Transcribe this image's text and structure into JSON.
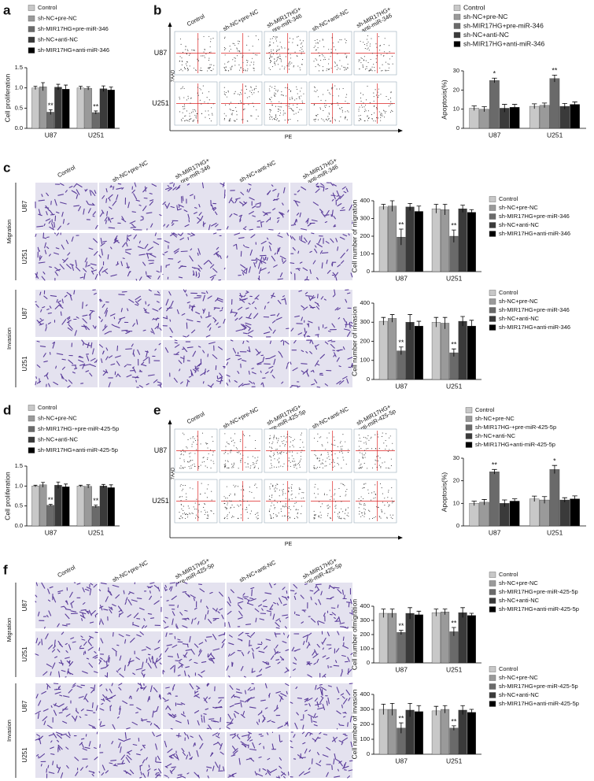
{
  "figure": {
    "panel_labels": [
      "a",
      "b",
      "c",
      "d",
      "e",
      "f"
    ]
  },
  "flow_panels": [
    {
      "columns": [
        [
          "Control"
        ],
        [
          "sh-NC+pre-NC"
        ],
        [
          "sh-MIR17HG+",
          "pre-miR-346"
        ],
        [
          "sh-NC+anti-NC"
        ],
        [
          "sh-MIR17HG+",
          "anti-miR-346"
        ]
      ],
      "rows": [
        "U87",
        "U251"
      ],
      "y_axis": "7AAD",
      "x_axis": "PE"
    },
    {
      "columns": [
        [
          "Control"
        ],
        [
          "sh-NC+pre-NC"
        ],
        [
          "sh-MIR17HG+",
          "pre-miR-425-5p"
        ],
        [
          "sh-NC+anti-NC"
        ],
        [
          "sh-MIR17HG+",
          "anti-miR-425-5p"
        ]
      ],
      "rows": [
        "U87",
        "U251"
      ],
      "y_axis": "7AAD",
      "x_axis": "PE"
    }
  ],
  "image_panels": [
    {
      "columns": [
        [
          "Control"
        ],
        [
          "sh-NC+pre-NC"
        ],
        [
          "sh-MIR17HG+",
          "pre-miR-346"
        ],
        [
          "sh-NC+anti-NC"
        ],
        [
          "sh-MIR17HG+",
          "anti-miR-346"
        ]
      ],
      "groups": [
        {
          "name": "Migration",
          "rows": [
            "U87",
            "U251"
          ]
        },
        {
          "name": "Invasion",
          "rows": [
            "U87",
            "U251"
          ]
        }
      ]
    },
    {
      "columns": [
        [
          "Control"
        ],
        [
          "sh-NC+pre-NC"
        ],
        [
          "sh-MIR17HG+",
          "pre-miR-425-5p"
        ],
        [
          "sh-NC+anti-NC"
        ],
        [
          "sh-MIR17HG+",
          "anti-miR-425-5p"
        ]
      ],
      "groups": [
        {
          "name": "Migration",
          "rows": [
            "U87",
            "U251"
          ]
        },
        {
          "name": "Invasion",
          "rows": [
            "U87",
            "U251"
          ]
        }
      ]
    }
  ],
  "chart_data": [
    {
      "type": "bar",
      "ylabel": "Cell proliferation",
      "categories": [
        "U87",
        "U251"
      ],
      "ylim": [
        0,
        1.5
      ],
      "yticks": [
        {
          "value": 0,
          "label": "0.0"
        },
        0.5,
        {
          "value": 1,
          "label": "1.0"
        },
        1.5
      ],
      "series": [
        {
          "name": "Control",
          "color": "#c8c8c8",
          "values": [
            1.0,
            1.0
          ],
          "errors": [
            0.04,
            0.04
          ]
        },
        {
          "name": "sh-NC+pre-NC",
          "color": "#9a9a9a",
          "values": [
            1.03,
            0.99
          ],
          "errors": [
            0.1,
            0.04
          ]
        },
        {
          "name": "sh-MIR17HG+pre-miR-346",
          "color": "#6a6a6a",
          "values": [
            0.4,
            0.39
          ],
          "errors": [
            0.06,
            0.04
          ],
          "significance": [
            "**",
            "**"
          ]
        },
        {
          "name": "sh-NC+anti-NC",
          "color": "#3a3a3a",
          "values": [
            1.02,
            0.98
          ],
          "errors": [
            0.07,
            0.07
          ]
        },
        {
          "name": "sh-MIR17HG+anti-miR-346",
          "color": "#000000",
          "values": [
            0.97,
            0.95
          ],
          "errors": [
            0.1,
            0.07
          ]
        }
      ]
    },
    {
      "type": "bar",
      "ylabel": "Apoptosis(%)",
      "categories": [
        "U87",
        "U251"
      ],
      "ylim": [
        0,
        30
      ],
      "yticks": [
        0,
        10,
        20,
        30
      ],
      "series": [
        {
          "name": "Control",
          "color": "#c8c8c8",
          "values": [
            10.5,
            11.5
          ],
          "errors": [
            1.2,
            1.3
          ]
        },
        {
          "name": "sh-NC+pre-NC",
          "color": "#9a9a9a",
          "values": [
            10,
            12
          ],
          "errors": [
            1.3,
            1.2
          ]
        },
        {
          "name": "sh-MIR17HG+pre-miR-346",
          "color": "#6a6a6a",
          "values": [
            25,
            26
          ],
          "errors": [
            1.2,
            1.8
          ],
          "significance": [
            "*",
            "**"
          ]
        },
        {
          "name": "sh-NC+anti-NC",
          "color": "#3a3a3a",
          "values": [
            10.5,
            11.5
          ],
          "errors": [
            2,
            1.5
          ]
        },
        {
          "name": "sh-MIR17HG+anti-miR-346",
          "color": "#000000",
          "values": [
            11,
            12.5
          ],
          "errors": [
            1.5,
            1.3
          ]
        }
      ]
    },
    {
      "type": "bar",
      "ylabel": "Cell number of migration",
      "categories": [
        "U87",
        "U251"
      ],
      "ylim": [
        0,
        400
      ],
      "yticks": [
        0,
        100,
        200,
        300,
        400
      ],
      "series": [
        {
          "name": "Control",
          "color": "#c8c8c8",
          "values": [
            365,
            355
          ],
          "errors": [
            15,
            25
          ]
        },
        {
          "name": "sh-NC+pre-NC",
          "color": "#9a9a9a",
          "values": [
            370,
            350
          ],
          "errors": [
            30,
            30
          ]
        },
        {
          "name": "sh-MIR17HG+pre-miR-346",
          "color": "#6a6a6a",
          "values": [
            195,
            200
          ],
          "errors": [
            45,
            35
          ],
          "significance": [
            "**",
            "**"
          ]
        },
        {
          "name": "sh-NC+anti-NC",
          "color": "#3a3a3a",
          "values": [
            365,
            355
          ],
          "errors": [
            20,
            20
          ]
        },
        {
          "name": "sh-MIR17HG+anti-miR-346",
          "color": "#000000",
          "values": [
            340,
            335
          ],
          "errors": [
            30,
            15
          ]
        }
      ]
    },
    {
      "type": "bar",
      "ylabel": "Cell number of invasion",
      "categories": [
        "U87",
        "U251"
      ],
      "ylim": [
        0,
        400
      ],
      "yticks": [
        0,
        100,
        200,
        300,
        400
      ],
      "series": [
        {
          "name": "Control",
          "color": "#c8c8c8",
          "values": [
            305,
            300
          ],
          "errors": [
            20,
            25
          ]
        },
        {
          "name": "sh-NC+pre-NC",
          "color": "#9a9a9a",
          "values": [
            320,
            295
          ],
          "errors": [
            20,
            30
          ]
        },
        {
          "name": "sh-MIR17HG+pre-miR-346",
          "color": "#6a6a6a",
          "values": [
            150,
            140
          ],
          "errors": [
            20,
            20
          ],
          "significance": [
            "**",
            "**"
          ]
        },
        {
          "name": "sh-NC+anti-NC",
          "color": "#3a3a3a",
          "values": [
            300,
            305
          ],
          "errors": [
            40,
            25
          ]
        },
        {
          "name": "sh-MIR17HG+anti-miR-346",
          "color": "#000000",
          "values": [
            280,
            280
          ],
          "errors": [
            25,
            30
          ]
        }
      ]
    },
    {
      "type": "bar",
      "ylabel": "Cell proliferation",
      "categories": [
        "U87",
        "U251"
      ],
      "ylim": [
        0,
        1.5
      ],
      "yticks": [
        {
          "value": 0,
          "label": "0.0"
        },
        0.5,
        {
          "value": 1,
          "label": "1.0"
        },
        1.5
      ],
      "series": [
        {
          "name": "Control",
          "color": "#c8c8c8",
          "values": [
            1.0,
            1.0
          ],
          "errors": [
            0.02,
            0.02
          ]
        },
        {
          "name": "sh-NC+pre-NC",
          "color": "#9a9a9a",
          "values": [
            1.03,
            0.99
          ],
          "errors": [
            0.06,
            0.04
          ]
        },
        {
          "name": "sh-MIR17HG-+pre-miR-425-5p",
          "color": "#6a6a6a",
          "values": [
            0.52,
            0.49
          ],
          "errors": [
            0.02,
            0.03
          ],
          "significance": [
            "**",
            "**"
          ]
        },
        {
          "name": "sh-NC+anti-NC",
          "color": "#3a3a3a",
          "values": [
            1.02,
            1.0
          ],
          "errors": [
            0.08,
            0.04
          ]
        },
        {
          "name": "sh-MIR17HG+anti-miR-425-5p",
          "color": "#000000",
          "values": [
            0.98,
            0.96
          ],
          "errors": [
            0.07,
            0.07
          ]
        }
      ]
    },
    {
      "type": "bar",
      "ylabel": "Apoptosis(%)",
      "categories": [
        "U87",
        "U251"
      ],
      "ylim": [
        0,
        30
      ],
      "yticks": [
        0,
        10,
        20,
        30
      ],
      "series": [
        {
          "name": "Control",
          "color": "#c8c8c8",
          "values": [
            10,
            12
          ],
          "errors": [
            1,
            1.2
          ]
        },
        {
          "name": "sh-NC+pre-NC",
          "color": "#9a9a9a",
          "values": [
            10.5,
            11.5
          ],
          "errors": [
            1.2,
            1.5
          ]
        },
        {
          "name": "sh-MIR17HG-+pre-miR-425-5p",
          "color": "#6a6a6a",
          "values": [
            24,
            25
          ],
          "errors": [
            1,
            1.8
          ],
          "significance": [
            "**",
            "*"
          ]
        },
        {
          "name": "sh-NC+anti-NC",
          "color": "#3a3a3a",
          "values": [
            10,
            11.5
          ],
          "errors": [
            1.5,
            1
          ]
        },
        {
          "name": "sh-MIR17HG+anti-miR-425-5p",
          "color": "#000000",
          "values": [
            11,
            12
          ],
          "errors": [
            1,
            1.3
          ]
        }
      ]
    },
    {
      "type": "bar",
      "ylabel": "Cell number ofmigration",
      "categories": [
        "U87",
        "U251"
      ],
      "ylim": [
        0,
        400
      ],
      "yticks": [
        0,
        100,
        200,
        300,
        400
      ],
      "series": [
        {
          "name": "Control",
          "color": "#c8c8c8",
          "values": [
            350,
            355
          ],
          "errors": [
            30,
            25
          ]
        },
        {
          "name": "sh-NC+pre-NC",
          "color": "#9a9a9a",
          "values": [
            350,
            360
          ],
          "errors": [
            30,
            20
          ]
        },
        {
          "name": "sh-MIR17HG+pre-miR-425-5p",
          "color": "#6a6a6a",
          "values": [
            215,
            220
          ],
          "errors": [
            15,
            30
          ],
          "significance": [
            "**",
            "**"
          ]
        },
        {
          "name": "sh-NC+anti-NC",
          "color": "#3a3a3a",
          "values": [
            350,
            355
          ],
          "errors": [
            40,
            35
          ]
        },
        {
          "name": "sh-MIR17HG+anti-miR-425-5p",
          "color": "#000000",
          "values": [
            340,
            335
          ],
          "errors": [
            25,
            15
          ]
        }
      ]
    },
    {
      "type": "bar",
      "ylabel": "Cell number of invasion",
      "categories": [
        "U87",
        "U251"
      ],
      "ylim": [
        0,
        400
      ],
      "yticks": [
        0,
        100,
        200,
        300,
        400
      ],
      "series": [
        {
          "name": "Control",
          "color": "#c8c8c8",
          "values": [
            300,
            290
          ],
          "errors": [
            35,
            30
          ]
        },
        {
          "name": "sh-NC+pre-NC",
          "color": "#9a9a9a",
          "values": [
            300,
            300
          ],
          "errors": [
            40,
            25
          ]
        },
        {
          "name": "sh-MIR17HG+pre-miR-425-5p",
          "color": "#6a6a6a",
          "values": [
            175,
            175
          ],
          "errors": [
            35,
            15
          ],
          "significance": [
            "**",
            "**"
          ]
        },
        {
          "name": "sh-NC+anti-NC",
          "color": "#3a3a3a",
          "values": [
            295,
            295
          ],
          "errors": [
            45,
            30
          ]
        },
        {
          "name": "sh-MIR17HG+anti-miR-425-5p",
          "color": "#000000",
          "values": [
            285,
            280
          ],
          "errors": [
            40,
            20
          ]
        }
      ]
    }
  ]
}
